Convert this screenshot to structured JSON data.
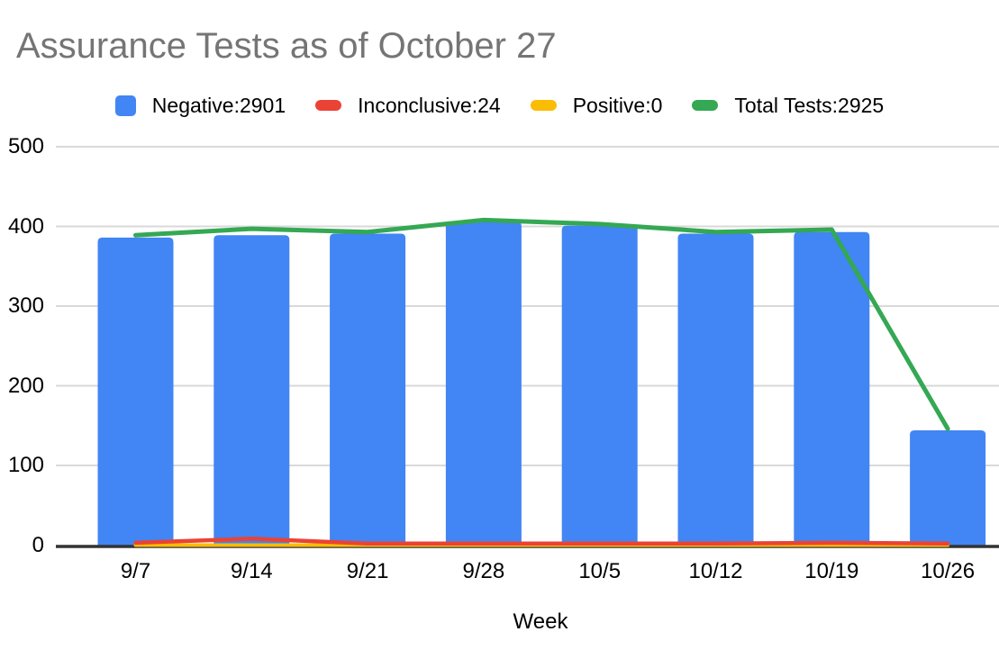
{
  "chart_data": {
    "type": "combo",
    "title": "Assurance Tests as of October 27",
    "xlabel": "Week",
    "categories": [
      "9/7",
      "9/14",
      "9/21",
      "9/28",
      "10/5",
      "10/12",
      "10/19",
      "10/26"
    ],
    "series": [
      {
        "name": "Negative:2901",
        "type": "bar",
        "color": "#4285F4",
        "total": 2901,
        "values": [
          386,
          389,
          391,
          406,
          401,
          391,
          393,
          144
        ]
      },
      {
        "name": "Inconclusive:24",
        "type": "line",
        "color": "#EA4335",
        "total": 24,
        "values": [
          3,
          8,
          2,
          2,
          2,
          2,
          3,
          2
        ]
      },
      {
        "name": "Positive:0",
        "type": "line",
        "color": "#FBBC04",
        "total": 0,
        "values": [
          0,
          0,
          0,
          0,
          0,
          0,
          0,
          0
        ]
      },
      {
        "name": "Total Tests:2925",
        "type": "line",
        "color": "#34A853",
        "total": 2925,
        "values": [
          389,
          397,
          393,
          408,
          403,
          393,
          396,
          146
        ]
      }
    ],
    "ylim": [
      0,
      500
    ],
    "yticks": [
      0,
      100,
      200,
      300,
      400,
      500
    ],
    "grid": true,
    "legend_position": "top",
    "colors": {
      "title_text": "#757575",
      "axis_text": "#000000",
      "gridline": "#D9D9D9",
      "axis_line": "#333333",
      "background": "#ffffff"
    }
  }
}
